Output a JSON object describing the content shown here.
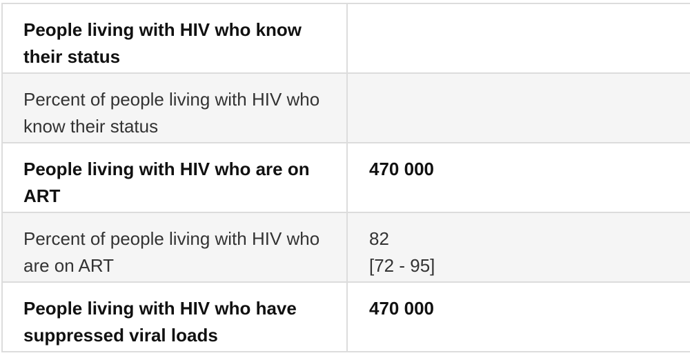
{
  "table": {
    "rows": [
      {
        "label": "People living with HIV who know their status"
      },
      {
        "label": "Percent of people living with HIV who know their status"
      },
      {
        "label": "People living with HIV who are on ART",
        "value": "470 000"
      },
      {
        "label": "Percent of people living with HIV who are on ART",
        "value": "82",
        "range": "[72 - 95]"
      },
      {
        "label": "People living with HIV who have suppressed viral loads",
        "value": "470 000"
      }
    ]
  }
}
